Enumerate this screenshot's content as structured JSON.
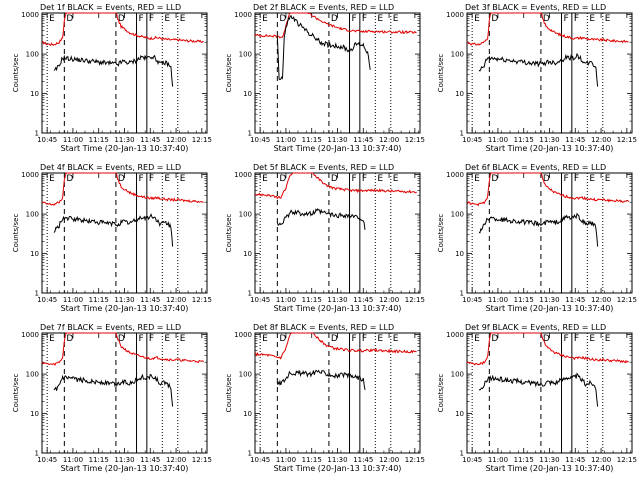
{
  "page": {
    "colors": {
      "background": "#ffffff",
      "axis": "#000000",
      "events": "#000000",
      "lld": "#e00000"
    }
  },
  "chart_data": [
    {
      "type": "line",
      "title": "Det 1f BLACK = Events, RED = LLD",
      "detector": "1f"
    },
    {
      "type": "line",
      "title": "Det 2f BLACK = Events, RED = LLD",
      "detector": "2f"
    },
    {
      "type": "line",
      "title": "Det 3f BLACK = Events, RED = LLD",
      "detector": "3f"
    },
    {
      "type": "line",
      "title": "Det 4f BLACK = Events, RED = LLD",
      "detector": "4f"
    },
    {
      "type": "line",
      "title": "Det 5f BLACK = Events, RED = LLD",
      "detector": "5f"
    },
    {
      "type": "line",
      "title": "Det 6f BLACK = Events, RED = LLD",
      "detector": "6f"
    },
    {
      "type": "line",
      "title": "Det 7f BLACK = Events, RED = LLD",
      "detector": "7f"
    },
    {
      "type": "line",
      "title": "Det 8f BLACK = Events, RED = LLD",
      "detector": "8f"
    },
    {
      "type": "line",
      "title": "Det 9f BLACK = Events, RED = LLD",
      "detector": "9f"
    }
  ],
  "axes": {
    "xlabel": "Start Time (20-Jan-13 10:37:40)",
    "ylabel": "Counts/sec",
    "x_tick_labels": [
      "10:45",
      "11:00",
      "11:15",
      "11:30",
      "11:45",
      "12:00",
      "12:15"
    ],
    "x_tick_minutes": [
      0,
      15,
      30,
      45,
      60,
      75,
      90
    ],
    "xlim_minutes": [
      -3,
      93
    ],
    "y_tick_labels": [
      "1",
      "10",
      "100",
      "1000"
    ],
    "y_tick_values": [
      1,
      10,
      100,
      1000
    ],
    "ylim": [
      1,
      1100
    ],
    "yscale": "log"
  },
  "markers": [
    {
      "label": "E",
      "minute": 0,
      "style": "dotted"
    },
    {
      "label": "D",
      "minute": 10,
      "style": "dashed"
    },
    {
      "label": "D",
      "minute": 40,
      "style": "dashed"
    },
    {
      "label": "F",
      "minute": 52,
      "style": "solid"
    },
    {
      "label": "F",
      "minute": 58,
      "style": "solid"
    },
    {
      "label": "E",
      "minute": 67,
      "style": "dotted"
    },
    {
      "label": "E",
      "minute": 76,
      "style": "dotted"
    }
  ],
  "series_profiles": {
    "standard": {
      "lld": [
        [
          -3,
          200
        ],
        [
          0,
          180
        ],
        [
          4,
          175
        ],
        [
          7,
          200
        ],
        [
          9,
          260
        ],
        [
          10,
          700
        ],
        [
          11,
          1200
        ],
        [
          40,
          1200
        ],
        [
          41,
          800
        ],
        [
          43,
          500
        ],
        [
          48,
          350
        ],
        [
          52,
          300
        ],
        [
          56,
          270
        ],
        [
          60,
          250
        ],
        [
          64,
          260
        ],
        [
          68,
          240
        ],
        [
          72,
          230
        ],
        [
          76,
          230
        ],
        [
          80,
          220
        ],
        [
          84,
          215
        ],
        [
          88,
          210
        ],
        [
          91,
          205
        ]
      ],
      "events": [
        [
          4,
          35
        ],
        [
          5,
          40
        ],
        [
          6,
          45
        ],
        [
          7,
          50
        ],
        [
          8,
          65
        ],
        [
          9,
          80
        ],
        [
          41,
          55
        ],
        [
          44,
          65
        ],
        [
          48,
          60
        ],
        [
          52,
          70
        ],
        [
          55,
          85
        ],
        [
          58,
          78
        ],
        [
          61,
          90
        ],
        [
          64,
          70
        ],
        [
          66,
          55
        ],
        [
          68,
          60
        ],
        [
          70,
          58
        ],
        [
          72,
          45
        ],
        [
          73,
          15
        ]
      ]
    },
    "wide": {
      "lld": [
        [
          -3,
          320
        ],
        [
          5,
          300
        ],
        [
          9,
          270
        ],
        [
          12,
          260
        ],
        [
          15,
          450
        ],
        [
          17,
          900
        ],
        [
          19,
          1200
        ],
        [
          30,
          1200
        ],
        [
          33,
          850
        ],
        [
          38,
          550
        ],
        [
          43,
          450
        ],
        [
          47,
          430
        ],
        [
          52,
          400
        ],
        [
          58,
          390
        ],
        [
          64,
          400
        ],
        [
          70,
          395
        ],
        [
          76,
          380
        ],
        [
          82,
          375
        ],
        [
          88,
          370
        ],
        [
          91,
          365
        ]
      ],
      "events": [
        [
          10,
          55
        ],
        [
          12,
          60
        ],
        [
          14,
          70
        ],
        [
          16,
          90
        ],
        [
          18,
          110
        ],
        [
          30,
          100
        ],
        [
          33,
          120
        ],
        [
          36,
          110
        ],
        [
          40,
          100
        ],
        [
          44,
          90
        ],
        [
          48,
          95
        ],
        [
          52,
          90
        ],
        [
          55,
          85
        ],
        [
          58,
          80
        ],
        [
          60,
          70
        ],
        [
          61,
          40
        ]
      ]
    },
    "two": {
      "lld": [
        [
          -3,
          300
        ],
        [
          5,
          290
        ],
        [
          10,
          280
        ],
        [
          13,
          270
        ],
        [
          15,
          500
        ],
        [
          17,
          1100
        ],
        [
          20,
          1500
        ],
        [
          28,
          1100
        ],
        [
          33,
          800
        ],
        [
          38,
          600
        ],
        [
          43,
          500
        ],
        [
          48,
          430
        ],
        [
          52,
          400
        ],
        [
          56,
          380
        ],
        [
          60,
          370
        ],
        [
          64,
          380
        ],
        [
          70,
          370
        ],
        [
          76,
          365
        ],
        [
          82,
          360
        ],
        [
          88,
          355
        ],
        [
          91,
          350
        ]
      ],
      "events": [
        [
          10,
          300
        ],
        [
          11,
          25
        ],
        [
          12,
          25
        ],
        [
          13,
          25
        ],
        [
          14,
          260
        ],
        [
          16,
          700
        ],
        [
          18,
          900
        ],
        [
          24,
          500
        ],
        [
          30,
          300
        ],
        [
          35,
          200
        ],
        [
          40,
          170
        ],
        [
          45,
          160
        ],
        [
          48,
          150
        ],
        [
          52,
          120
        ],
        [
          56,
          180
        ],
        [
          60,
          170
        ],
        [
          63,
          100
        ],
        [
          64,
          40
        ]
      ]
    }
  },
  "panel_profiles": [
    "standard",
    "two",
    "standard",
    "standard",
    "wide",
    "standard",
    "standard",
    "wide",
    "standard"
  ]
}
